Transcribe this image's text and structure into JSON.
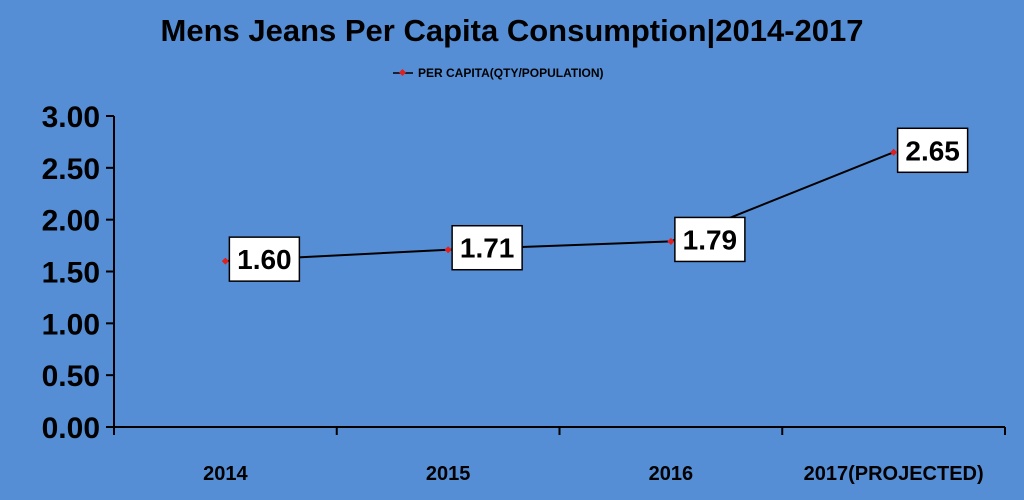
{
  "chart_data": {
    "type": "line",
    "title": "Mens Jeans Per Capita Consumption|2014-2017",
    "xlabel": "",
    "ylabel": "",
    "categories": [
      "2014",
      "2015",
      "2016",
      "2017(PROJECTED)"
    ],
    "series": [
      {
        "name": "PER CAPITA(QTY/POPULATION)",
        "values": [
          1.6,
          1.71,
          1.79,
          2.65
        ],
        "labels": [
          "1.60",
          "1.71",
          "1.79",
          "2.65"
        ],
        "line_color": "#000000",
        "marker_color": "#e02020"
      }
    ],
    "ylim": [
      0,
      3
    ],
    "yticks": [
      "0.00",
      "0.50",
      "1.00",
      "1.50",
      "2.00",
      "2.50",
      "3.00"
    ],
    "grid": false,
    "legend_position": "top",
    "background_color": "#558ed5"
  }
}
